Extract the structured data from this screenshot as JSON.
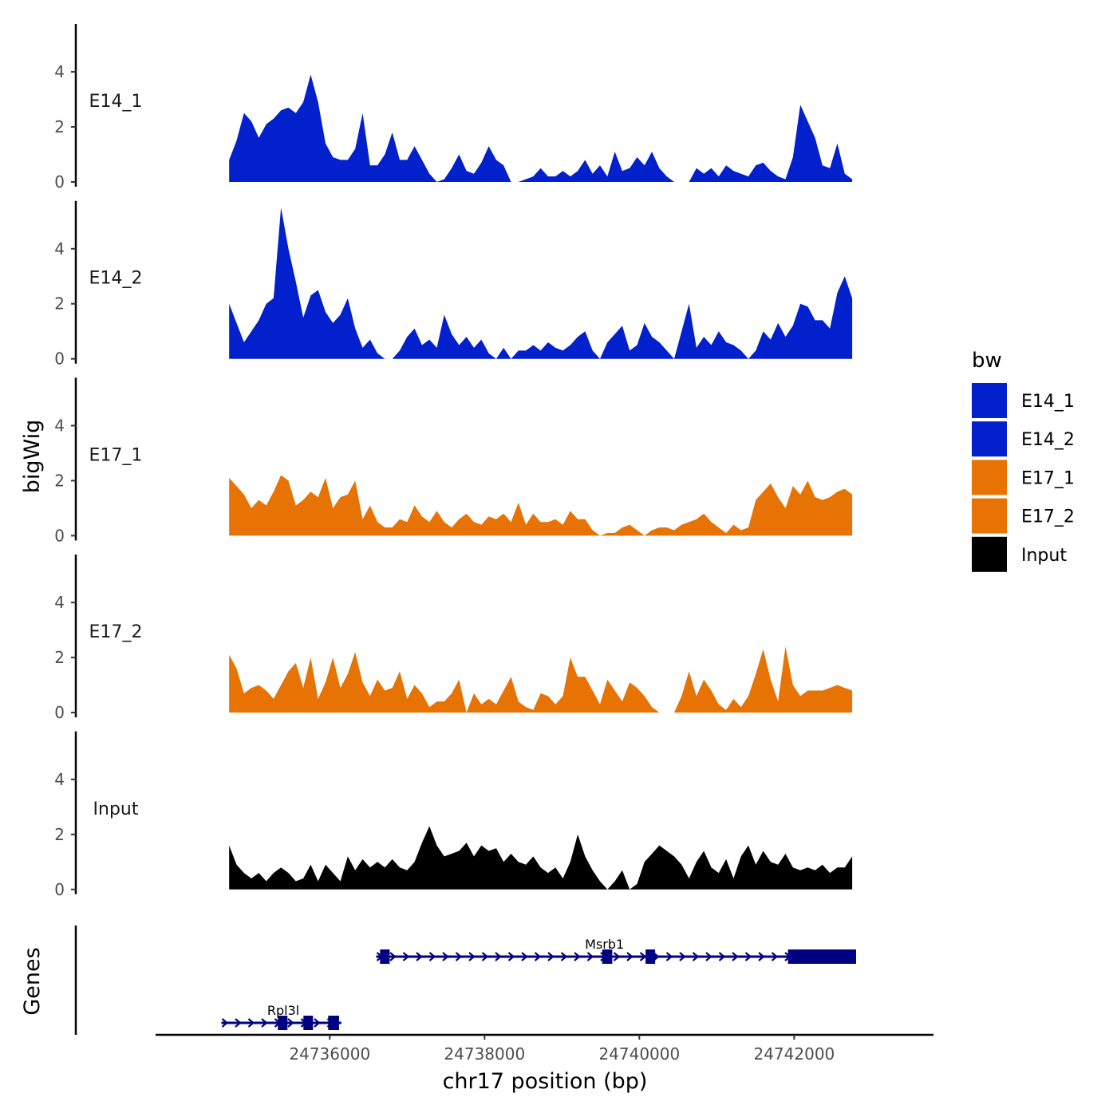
{
  "chart_data": {
    "type": "area",
    "chromosome": "chr17",
    "xlabel": "chr17 position (bp)",
    "ylabel": "bigWig",
    "genes_label": "Genes",
    "xlim": [
      24733750,
      24743800
    ],
    "x_ticks": [
      24736000,
      24738000,
      24740000,
      24742000
    ],
    "x_tick_labels": [
      "24736000",
      "24738000",
      "24740000",
      "24742000"
    ],
    "ylim": [
      0,
      5.8
    ],
    "y_ticks": [
      0,
      2,
      4
    ],
    "y_tick_labels": [
      "0",
      "2",
      "4"
    ],
    "legend": {
      "title": "bw",
      "position": "right",
      "entries": [
        {
          "label": "E14_1",
          "color": "#0220cc"
        },
        {
          "label": "E14_2",
          "color": "#0220cc"
        },
        {
          "label": "E17_1",
          "color": "#e67304"
        },
        {
          "label": "E17_2",
          "color": "#e67304"
        },
        {
          "label": "Input",
          "color": "#000000"
        }
      ]
    },
    "series": [
      {
        "name": "E14_1",
        "label": "E14_1",
        "color": "#0220cc",
        "x_start": 24734700,
        "x_end": 24742750,
        "values": [
          0.8,
          1.5,
          2.5,
          2.2,
          1.6,
          2.1,
          2.3,
          2.6,
          2.7,
          2.5,
          2.9,
          3.9,
          2.9,
          1.4,
          0.9,
          0.8,
          0.8,
          1.2,
          2.5,
          0.6,
          0.6,
          1.0,
          1.8,
          0.8,
          0.8,
          1.3,
          0.8,
          0.3,
          0.0,
          0.1,
          0.5,
          1.0,
          0.4,
          0.3,
          0.7,
          1.3,
          0.8,
          0.6,
          0.0,
          0.0,
          0.1,
          0.2,
          0.5,
          0.2,
          0.2,
          0.4,
          0.2,
          0.4,
          0.8,
          0.3,
          0.6,
          0.2,
          1.1,
          0.4,
          0.5,
          0.9,
          0.6,
          1.1,
          0.5,
          0.2,
          0.0,
          0.0,
          0.0,
          0.5,
          0.3,
          0.5,
          0.2,
          0.6,
          0.4,
          0.3,
          0.2,
          0.6,
          0.7,
          0.4,
          0.2,
          0.1,
          0.9,
          2.8,
          2.2,
          1.6,
          0.6,
          0.5,
          1.4,
          0.3,
          0.1
        ]
      },
      {
        "name": "E14_2",
        "label": "E14_2",
        "color": "#0220cc",
        "x_start": 24734700,
        "x_end": 24742750,
        "values": [
          2.0,
          1.3,
          0.6,
          1.0,
          1.4,
          2.0,
          2.2,
          5.5,
          4.0,
          2.8,
          1.5,
          2.3,
          2.5,
          1.7,
          1.3,
          1.6,
          2.2,
          1.1,
          0.4,
          0.7,
          0.2,
          0.0,
          0.0,
          0.3,
          0.8,
          1.1,
          0.5,
          0.7,
          0.4,
          1.6,
          0.9,
          0.5,
          0.8,
          0.4,
          0.7,
          0.2,
          0.0,
          0.4,
          0.0,
          0.3,
          0.3,
          0.5,
          0.3,
          0.6,
          0.4,
          0.3,
          0.5,
          0.8,
          1.0,
          0.3,
          0.0,
          0.6,
          0.9,
          1.2,
          0.3,
          0.5,
          1.3,
          0.8,
          0.6,
          0.3,
          0.0,
          1.0,
          2.0,
          0.4,
          0.8,
          0.5,
          1.0,
          0.6,
          0.5,
          0.3,
          0.0,
          0.3,
          1.0,
          0.7,
          1.3,
          0.8,
          1.2,
          2.0,
          1.9,
          1.4,
          1.4,
          1.1,
          2.4,
          3.0,
          2.2
        ]
      },
      {
        "name": "E17_1",
        "label": "E17_1",
        "color": "#e67304",
        "x_start": 24734700,
        "x_end": 24742750,
        "values": [
          2.1,
          1.8,
          1.5,
          1.0,
          1.3,
          1.1,
          1.6,
          2.2,
          2.0,
          1.1,
          1.3,
          1.6,
          1.4,
          2.1,
          1.0,
          1.4,
          1.5,
          2.0,
          0.6,
          1.1,
          0.5,
          0.3,
          0.3,
          0.6,
          0.5,
          1.1,
          0.7,
          0.5,
          0.9,
          0.5,
          0.3,
          0.6,
          0.8,
          0.5,
          0.4,
          0.7,
          0.6,
          0.8,
          0.5,
          1.2,
          0.4,
          0.8,
          0.5,
          0.5,
          0.6,
          0.4,
          0.9,
          0.6,
          0.6,
          0.2,
          0.0,
          0.1,
          0.1,
          0.3,
          0.4,
          0.2,
          0.0,
          0.2,
          0.3,
          0.3,
          0.2,
          0.4,
          0.5,
          0.6,
          0.8,
          0.5,
          0.3,
          0.1,
          0.4,
          0.2,
          0.3,
          1.3,
          1.6,
          1.9,
          1.4,
          1.0,
          1.8,
          1.5,
          2.0,
          1.4,
          1.3,
          1.4,
          1.6,
          1.7,
          1.5
        ]
      },
      {
        "name": "E17_2",
        "label": "E17_2",
        "color": "#e67304",
        "x_start": 24734700,
        "x_end": 24742750,
        "values": [
          2.1,
          1.6,
          0.7,
          0.9,
          1.0,
          0.8,
          0.5,
          1.0,
          1.5,
          1.8,
          0.9,
          2.0,
          0.5,
          1.1,
          2.0,
          0.9,
          1.4,
          2.2,
          1.1,
          0.6,
          1.2,
          0.8,
          0.9,
          1.5,
          0.5,
          1.0,
          0.7,
          0.2,
          0.4,
          0.4,
          0.7,
          1.2,
          0.0,
          0.7,
          0.3,
          0.5,
          0.3,
          0.8,
          1.3,
          0.4,
          0.2,
          0.1,
          0.7,
          0.6,
          0.3,
          0.6,
          2.0,
          1.3,
          1.3,
          0.8,
          0.3,
          1.2,
          0.8,
          0.4,
          1.1,
          0.9,
          0.6,
          0.2,
          0.0,
          0.0,
          0.0,
          0.6,
          1.5,
          0.6,
          1.2,
          0.8,
          0.3,
          0.1,
          0.5,
          0.2,
          0.6,
          1.4,
          2.3,
          1.2,
          0.4,
          2.4,
          1.0,
          0.6,
          0.8,
          0.8,
          0.8,
          0.9,
          1.0,
          0.9,
          0.8
        ]
      },
      {
        "name": "Input",
        "label": "Input",
        "color": "#000000",
        "x_start": 24734700,
        "x_end": 24742750,
        "values": [
          1.6,
          0.9,
          0.6,
          0.4,
          0.6,
          0.3,
          0.6,
          0.8,
          0.6,
          0.3,
          0.4,
          0.9,
          0.3,
          0.9,
          0.6,
          0.3,
          1.2,
          0.7,
          1.1,
          0.8,
          1.0,
          0.8,
          1.1,
          0.8,
          0.7,
          1.0,
          1.7,
          2.3,
          1.6,
          1.2,
          1.3,
          1.4,
          1.7,
          1.2,
          1.6,
          1.4,
          1.5,
          1.0,
          1.3,
          1.0,
          0.9,
          1.2,
          0.8,
          0.6,
          0.8,
          0.4,
          1.0,
          2.0,
          1.2,
          0.7,
          0.3,
          0.0,
          0.3,
          0.7,
          0.0,
          0.2,
          1.0,
          1.3,
          1.6,
          1.4,
          1.2,
          0.9,
          0.4,
          1.0,
          1.4,
          0.8,
          0.6,
          1.1,
          0.4,
          1.2,
          1.6,
          0.9,
          1.4,
          1.0,
          0.9,
          1.3,
          0.8,
          0.7,
          0.8,
          0.7,
          0.9,
          0.6,
          0.8,
          0.8,
          1.2
        ]
      }
    ],
    "genes": [
      {
        "name": "Msrb1",
        "strand": "+",
        "start": 24736600,
        "end": 24742800,
        "exons": [
          [
            24736650,
            24736760
          ],
          [
            24739520,
            24739650
          ],
          [
            24740080,
            24740200
          ],
          [
            24741920,
            24742800
          ]
        ],
        "row": 0
      },
      {
        "name": "Rpl3l",
        "strand": "+",
        "start": 24734600,
        "end": 24736150,
        "exons": [
          [
            24735330,
            24735440
          ],
          [
            24735660,
            24735770
          ],
          [
            24735980,
            24736120
          ]
        ],
        "row": 1
      }
    ]
  }
}
